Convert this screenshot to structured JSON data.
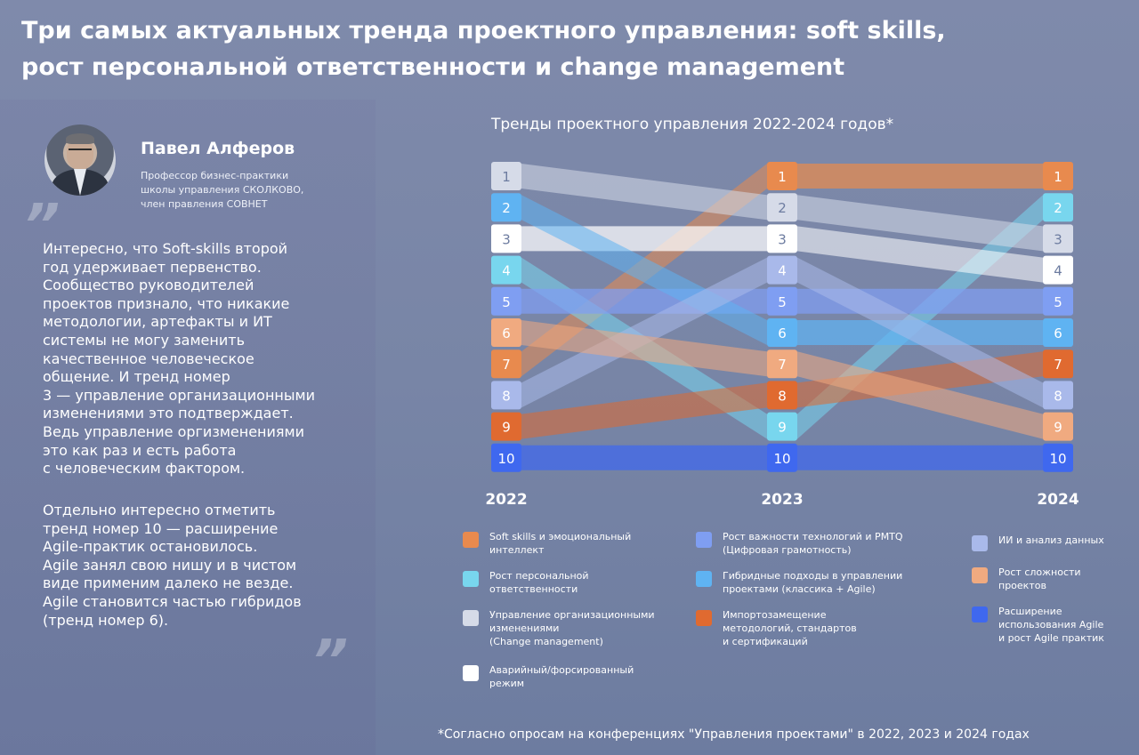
{
  "title": "Три самых актуальных тренда проектного управления: soft skills,\nрост персональной ответственности и change management",
  "author": {
    "name": "Павел Алферов",
    "role": "Профессор бизнес-практики\nшколы управления СКОЛКОВО,\nчлен правления СОВНЕТ"
  },
  "quote_mark": "”",
  "quote": {
    "p1": "Интересно, что Soft-skills второй\nгод удерживает первенство.\nСообщество руководителей\nпроектов признало, что никакие\nметодологии, артефакты и ИТ\nсистемы не могу заменить\nкачественное человеческое\nобщение. И тренд номер\n3 — управление организационными\nизменениями это подтверждает.\nВедь управление оргизменениями\nэто как раз и есть работа\nс человеческим фактором.",
    "p2": "Отдельно интересно отметить\nтренд номер 10 — расширение\nAgile-практик остановилось.\nAgile занял свою нишу и в чистом\nвиде применим далеко не везде.\nAgile становится частью гибридов\n(тренд номер 6)."
  },
  "chart_data": {
    "type": "rank-flow",
    "title": "Тренды проектного управления 2022-2024 годов*",
    "years": [
      "2022",
      "2023",
      "2024"
    ],
    "series": [
      {
        "name": "Soft skills и эмоциональный\nинтеллект",
        "color": "#e88a4e",
        "ranks": [
          7,
          1,
          1
        ]
      },
      {
        "name": "Рост персональной\nответственности",
        "color": "#78d6ee",
        "ranks": [
          4,
          9,
          2
        ]
      },
      {
        "name": "Управление организационными\nизменениями\n(Change management)",
        "color": "#d6dbe8",
        "ranks": [
          1,
          2,
          3
        ]
      },
      {
        "name": "Аварийный/форсированный\nрежим",
        "color": "#ffffff",
        "ranks": [
          3,
          3,
          4
        ]
      },
      {
        "name": "Рост важности технологий и PMTQ\n(Цифровая грамотность)",
        "color": "#7f9ef2",
        "ranks": [
          5,
          5,
          5
        ]
      },
      {
        "name": "Гибридные подходы в управлении\nпроектами (классика + Agile)",
        "color": "#5fb3f2",
        "ranks": [
          2,
          6,
          6
        ]
      },
      {
        "name": "Импортозамещение\nметодологий, стандартов\nи сертификаций",
        "color": "#e06a30",
        "ranks": [
          9,
          8,
          7
        ]
      },
      {
        "name": "ИИ и анализ данных",
        "color": "#a9b9ea",
        "ranks": [
          8,
          4,
          8
        ]
      },
      {
        "name": "Рост сложности\nпроектов",
        "color": "#f0aa80",
        "ranks": [
          6,
          7,
          9
        ]
      },
      {
        "name": "Расширение\nиспользования Agile\nи рост Agile практик",
        "color": "#3f68ef",
        "ranks": [
          10,
          10,
          10
        ]
      }
    ]
  },
  "footnote": "*Согласно опросам на конференциях \"Управления проектами\" в 2022, 2023 и 2024 годах"
}
